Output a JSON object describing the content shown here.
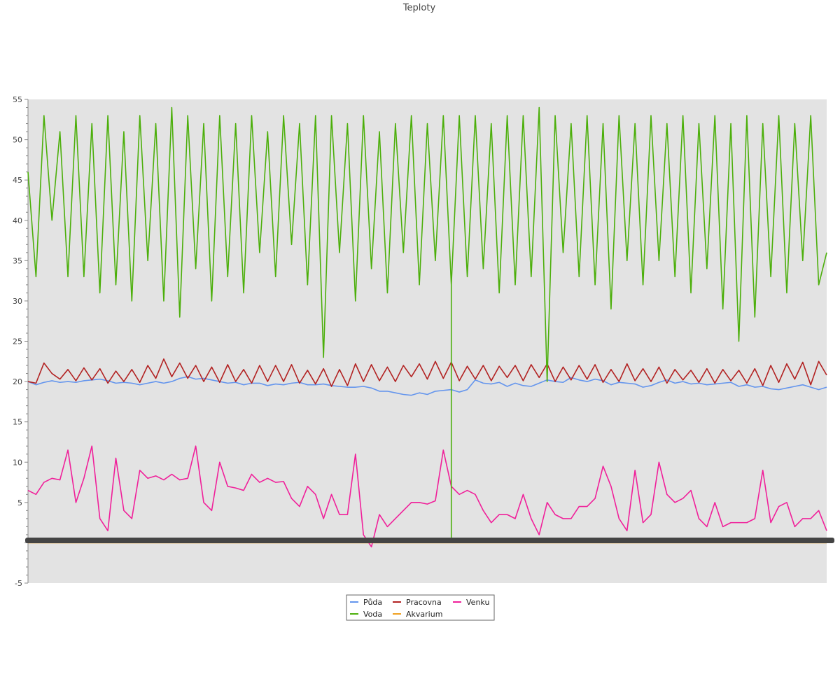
{
  "chart_data": {
    "type": "line",
    "title": "Teploty",
    "xlabel": "",
    "ylabel": "",
    "ylim": [
      -5,
      55
    ],
    "yticks": [
      -5,
      5,
      10,
      15,
      20,
      25,
      30,
      35,
      40,
      45,
      50,
      55
    ],
    "grid": false,
    "legend_position": "bottom-center",
    "plot_background": "#e3e3e3",
    "x_axis_band_color": "#444444",
    "x_axis_band_value": 0.3,
    "x_points": 101,
    "series": [
      {
        "name": "Půda",
        "color": "#6495ed",
        "values": [
          20.0,
          19.6,
          19.9,
          20.1,
          19.9,
          20.0,
          19.9,
          20.1,
          20.2,
          20.3,
          20.1,
          19.8,
          19.9,
          19.8,
          19.6,
          19.8,
          20.0,
          19.8,
          20.0,
          20.4,
          20.6,
          20.3,
          20.4,
          20.2,
          20.0,
          19.8,
          19.9,
          19.6,
          19.8,
          19.8,
          19.5,
          19.7,
          19.6,
          19.8,
          19.9,
          19.6,
          19.6,
          19.7,
          19.5,
          19.4,
          19.3,
          19.3,
          19.4,
          19.2,
          18.8,
          18.8,
          18.6,
          18.4,
          18.3,
          18.6,
          18.4,
          18.8,
          18.9,
          19.0,
          18.7,
          19.0,
          20.2,
          19.8,
          19.7,
          19.9,
          19.4,
          19.8,
          19.5,
          19.4,
          19.8,
          20.2,
          20.0,
          19.9,
          20.5,
          20.2,
          20.0,
          20.3,
          20.1,
          19.6,
          19.9,
          19.8,
          19.7,
          19.3,
          19.5,
          19.9,
          20.2,
          19.8,
          20.0,
          19.7,
          19.8,
          19.6,
          19.7,
          19.8,
          19.9,
          19.4,
          19.6,
          19.3,
          19.4,
          19.1,
          19.0,
          19.2,
          19.4,
          19.6,
          19.3,
          19.0,
          19.3
        ]
      },
      {
        "name": "Voda",
        "color": "#4caf0b",
        "values": [
          46,
          33,
          53,
          40,
          51,
          33,
          53,
          33,
          52,
          31,
          53,
          32,
          51,
          30,
          53,
          35,
          52,
          30,
          54,
          28,
          53,
          34,
          52,
          30,
          53,
          33,
          52,
          31,
          53,
          36,
          51,
          33,
          53,
          37,
          52,
          32,
          53,
          23,
          53,
          36,
          52,
          30,
          53,
          34,
          51,
          31,
          52,
          36,
          53,
          32,
          52,
          35,
          53,
          32,
          53,
          33,
          53,
          34,
          52,
          31,
          53,
          32,
          53,
          33,
          54,
          20,
          53,
          36,
          52,
          33,
          53,
          32,
          52,
          29,
          53,
          35,
          52,
          32,
          53,
          35,
          52,
          33,
          53,
          31,
          52,
          34,
          53,
          29,
          52,
          25,
          53,
          28,
          52,
          33,
          53,
          31,
          52,
          35,
          53,
          32,
          36
        ],
        "spikes": [
          {
            "x_index": 53,
            "value": 0.0
          }
        ]
      },
      {
        "name": "Pracovna",
        "color": "#b22222",
        "values": [
          20.0,
          19.8,
          22.3,
          21.0,
          20.3,
          21.5,
          20.1,
          21.7,
          20.2,
          21.6,
          19.8,
          21.3,
          20.0,
          21.5,
          19.9,
          22.0,
          20.4,
          22.8,
          20.6,
          22.3,
          20.4,
          22.0,
          20.0,
          21.8,
          19.9,
          22.1,
          20.0,
          21.5,
          19.8,
          22.0,
          20.0,
          22.0,
          20.0,
          22.1,
          19.8,
          21.4,
          19.7,
          21.6,
          19.4,
          21.5,
          19.5,
          22.2,
          20.0,
          22.1,
          20.1,
          21.8,
          20.0,
          22.0,
          20.6,
          22.2,
          20.3,
          22.5,
          20.4,
          22.4,
          20.1,
          21.9,
          20.3,
          22.0,
          20.1,
          21.9,
          20.5,
          22.0,
          20.1,
          22.1,
          20.5,
          22.2,
          20.0,
          21.8,
          20.2,
          22.0,
          20.3,
          22.1,
          19.9,
          21.5,
          20.0,
          22.2,
          20.1,
          21.6,
          20.0,
          21.8,
          19.8,
          21.5,
          20.2,
          21.4,
          19.9,
          21.6,
          19.8,
          21.5,
          20.1,
          21.4,
          19.8,
          21.6,
          19.5,
          22.0,
          19.9,
          22.2,
          20.3,
          22.4,
          19.6,
          22.5,
          20.8
        ]
      },
      {
        "name": "Akvarium",
        "color": "#f0a020",
        "values": [
          0.0,
          0.0,
          0.0,
          0.0,
          0.0,
          0.0,
          0.0,
          0.0,
          0.0,
          0.0,
          0.0,
          0.0,
          0.0,
          0.0,
          0.0,
          0.0,
          0.0,
          0.0,
          0.0,
          0.0,
          0.0,
          0.0,
          0.0,
          0.0,
          0.0,
          0.0,
          0.0,
          0.0,
          0.0,
          0.0,
          0.0,
          0.0,
          0.0,
          0.0,
          0.0,
          0.0,
          0.0,
          0.0,
          0.0,
          0.0,
          0.0,
          0.0,
          0.0,
          0.0,
          0.0,
          0.0,
          0.0,
          0.0,
          0.0,
          0.0,
          0.0,
          0.0,
          0.0,
          0.0,
          0.0,
          0.0,
          0.0,
          0.0,
          0.0,
          0.0,
          0.0,
          0.0,
          0.0,
          0.0,
          0.0,
          0.0,
          0.0,
          0.0,
          0.0,
          0.0,
          0.0,
          0.0,
          0.0,
          0.0,
          0.0,
          0.0,
          0.0,
          0.0,
          0.0,
          0.0,
          0.0,
          0.0,
          0.0,
          0.0,
          0.0,
          0.0,
          0.0,
          0.0,
          0.0,
          0.0,
          0.0,
          0.0,
          0.0,
          0.0,
          0.0,
          0.0,
          0.0,
          0.0,
          0.0,
          0.0,
          0.0
        ]
      },
      {
        "name": "Venku",
        "color": "#f0209a",
        "values": [
          6.5,
          6.0,
          7.5,
          8.0,
          7.8,
          11.5,
          5.0,
          8.0,
          12.0,
          3.0,
          1.5,
          10.5,
          4.0,
          3.0,
          9.0,
          8.0,
          8.3,
          7.8,
          8.5,
          7.8,
          8.0,
          12.0,
          5.0,
          4.0,
          10.0,
          7.0,
          6.8,
          6.5,
          8.5,
          7.5,
          8.0,
          7.5,
          7.6,
          5.5,
          4.5,
          7.0,
          6.0,
          3.0,
          6.0,
          3.5,
          3.5,
          11.0,
          1.0,
          -0.5,
          3.5,
          2.0,
          3.0,
          4.0,
          5.0,
          5.0,
          4.8,
          5.2,
          11.5,
          7.0,
          6.0,
          6.5,
          6.0,
          4.0,
          2.5,
          3.5,
          3.5,
          3.0,
          6.0,
          3.0,
          1.0,
          5.0,
          3.5,
          3.0,
          3.0,
          4.5,
          4.5,
          5.5,
          9.5,
          7.0,
          3.0,
          1.5,
          9.0,
          2.5,
          3.5,
          10.0,
          6.0,
          5.0,
          5.5,
          6.5,
          3.0,
          2.0,
          5.0,
          2.0,
          2.5,
          2.5,
          2.5,
          3.0,
          9.0,
          2.5,
          4.5,
          5.0,
          2.0,
          3.0,
          3.0,
          4.0,
          1.5
        ]
      }
    ]
  },
  "legend": {
    "items": [
      {
        "label": "Půda",
        "color": "#6495ed"
      },
      {
        "label": "Pracovna",
        "color": "#b22222"
      },
      {
        "label": "Venku",
        "color": "#f0209a"
      },
      {
        "label": "Voda",
        "color": "#4caf0b"
      },
      {
        "label": "Akvarium",
        "color": "#f0a020"
      }
    ]
  }
}
